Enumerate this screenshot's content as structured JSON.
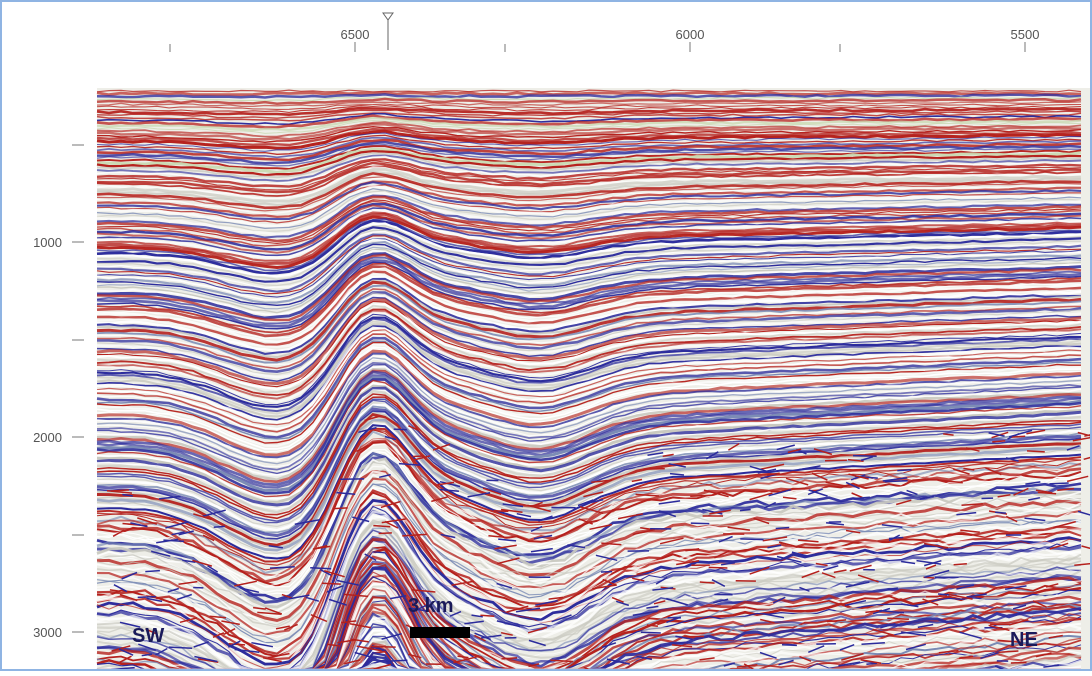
{
  "top_axis": {
    "labels": [
      "6500",
      "6000",
      "5500"
    ]
  },
  "left_axis": {
    "labels": [
      "1000",
      "2000",
      "3000"
    ]
  },
  "annotations": {
    "left_direction": "SW",
    "right_direction": "NE",
    "scale_bar": "3 km"
  }
}
